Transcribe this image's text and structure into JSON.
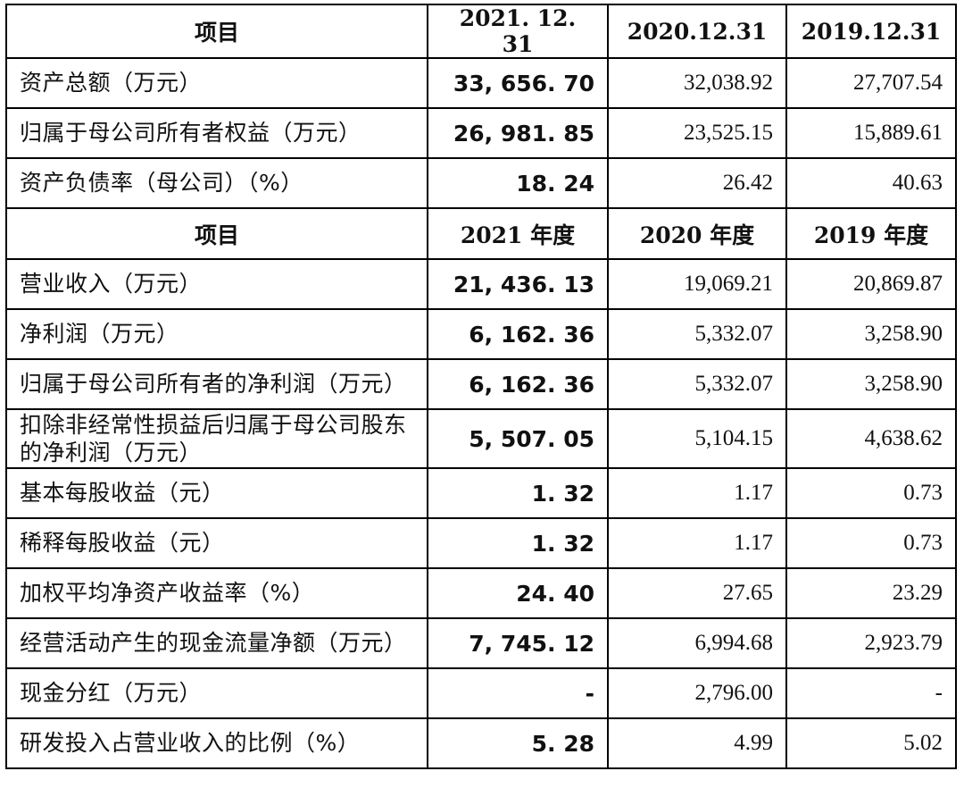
{
  "balance_header": [
    "项目",
    "2021. 12. 31",
    "2020.12.31",
    "2019.12.31"
  ],
  "balance_rows": [
    {
      "label": "资产总额（万元）",
      "v2021": "33, 656. 70",
      "v2020": "32,038.92",
      "v2019": "27,707.54"
    },
    {
      "label": "归属于母公司所有者权益（万元）",
      "v2021": "26, 981. 85",
      "v2020": "23,525.15",
      "v2019": "15,889.61"
    },
    {
      "label": "资产负债率（母公司）（%）",
      "v2021": "18. 24",
      "v2020": "26.42",
      "v2019": "40.63"
    }
  ],
  "income_header": [
    "项目",
    "2021 年度",
    "2020 年度",
    "2019 年度"
  ],
  "income_rows": [
    {
      "label": "营业收入（万元）",
      "v2021": "21, 436. 13",
      "v2020": "19,069.21",
      "v2019": "20,869.87"
    },
    {
      "label": "净利润（万元）",
      "v2021": "6, 162. 36",
      "v2020": "5,332.07",
      "v2019": "3,258.90"
    },
    {
      "label": "归属于母公司所有者的净利润（万元）",
      "v2021": "6, 162. 36",
      "v2020": "5,332.07",
      "v2019": "3,258.90"
    },
    {
      "label": "扣除非经常性损益后归属于母公司股东的净利润（万元）",
      "v2021": "5, 507. 05",
      "v2020": "5,104.15",
      "v2019": "4,638.62"
    },
    {
      "label": "基本每股收益（元）",
      "v2021": "1. 32",
      "v2020": "1.17",
      "v2019": "0.73"
    },
    {
      "label": "稀释每股收益（元）",
      "v2021": "1. 32",
      "v2020": "1.17",
      "v2019": "0.73"
    },
    {
      "label": "加权平均净资产收益率（%）",
      "v2021": "24. 40",
      "v2020": "27.65",
      "v2019": "23.29"
    },
    {
      "label": "经营活动产生的现金流量净额（万元）",
      "v2021": "7, 745. 12",
      "v2020": "6,994.68",
      "v2019": "2,923.79"
    },
    {
      "label": "现金分红（万元）",
      "v2021": "-",
      "v2020": "2,796.00",
      "v2019": "-"
    },
    {
      "label": "研发投入占营业收入的比例（%）",
      "v2021": "5. 28",
      "v2020": "4.99",
      "v2019": "5.02"
    }
  ]
}
